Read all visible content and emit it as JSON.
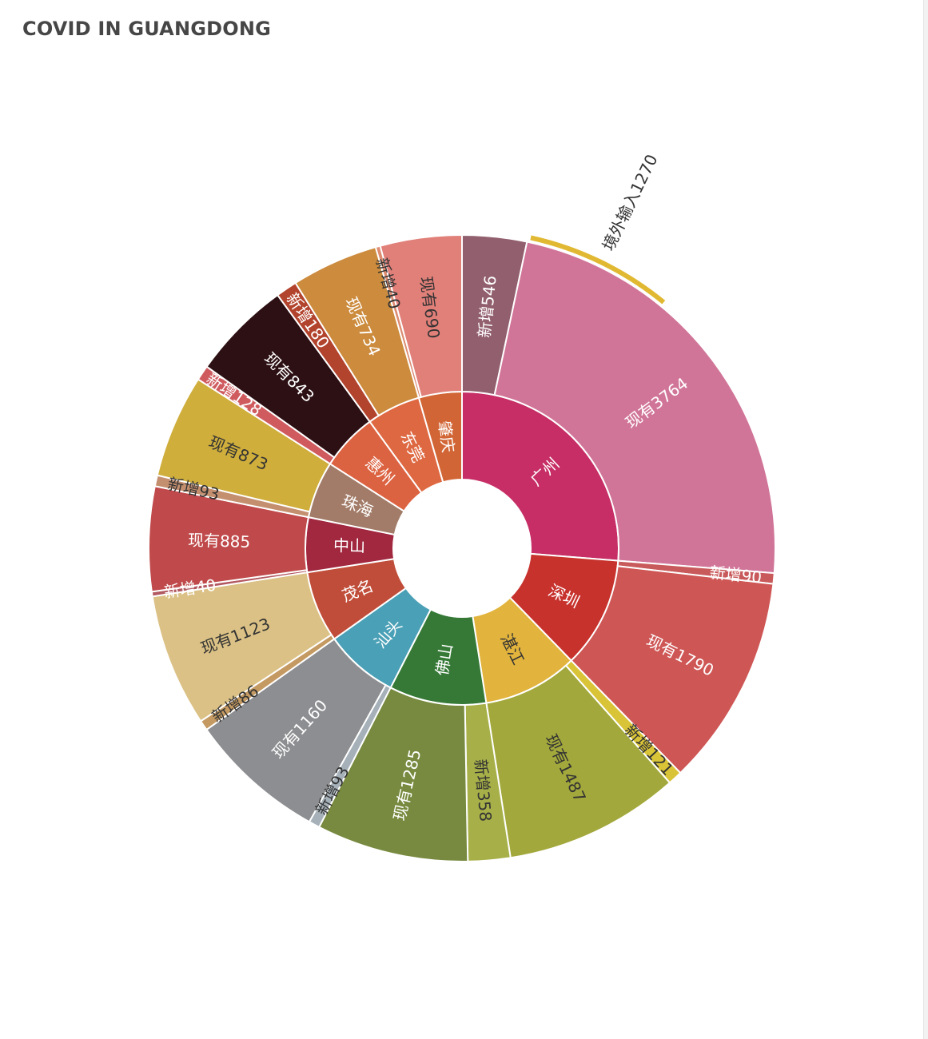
{
  "chart_data": {
    "type": "sunburst",
    "title": "COVID IN GUANGDONG",
    "root": {
      "color": "#c62e65",
      "children": [
        {
          "name": "广州",
          "color": "#c62e65",
          "children": [
            {
              "name": "新增546",
              "value": 546,
              "color": "#925f6e"
            },
            {
              "name": "现有3764",
              "value": 3764,
              "color": "#d17598"
            },
            {
              "name": "境外输入1270",
              "value": 1270,
              "color": "#e1b832",
              "outer": true
            }
          ]
        },
        {
          "name": "深圳",
          "color": "#c7322d",
          "children": [
            {
              "name": "新增90",
              "value": 90,
              "color": "#c95a5b"
            },
            {
              "name": "现有1790",
              "value": 1790,
              "color": "#ce5655"
            }
          ]
        },
        {
          "name": "湛江",
          "color": "#e2b43d",
          "children": [
            {
              "name": "新增121",
              "value": 121,
              "color": "#d9c438"
            },
            {
              "name": "现有1487",
              "value": 1487,
              "color": "#a2a83b"
            }
          ]
        },
        {
          "name": "佛山",
          "color": "#367937",
          "children": [
            {
              "name": "新增358",
              "value": 358,
              "color": "#a7b048"
            },
            {
              "name": "现有1285",
              "value": 1285,
              "color": "#778a3f"
            }
          ]
        },
        {
          "name": "汕头",
          "color": "#4aa0b6",
          "children": [
            {
              "name": "新增93",
              "value": 93,
              "color": "#a5b0b8"
            },
            {
              "name": "现有1160",
              "value": 1160,
              "color": "#8d8e91"
            }
          ]
        },
        {
          "name": "茂名",
          "color": "#c04d39",
          "children": [
            {
              "name": "新增86",
              "value": 86,
              "color": "#c49a62"
            },
            {
              "name": "现有1123",
              "value": 1123,
              "color": "#dbc185"
            }
          ]
        },
        {
          "name": "中山",
          "color": "#a1283f",
          "children": [
            {
              "name": "新增40",
              "value": 40,
              "color": "#b25860"
            },
            {
              "name": "现有885",
              "value": 885,
              "color": "#c04a4b"
            }
          ]
        },
        {
          "name": "珠海",
          "color": "#a27c68",
          "children": [
            {
              "name": "新增93",
              "value": 93,
              "color": "#c48f6f"
            },
            {
              "name": "现有873",
              "value": 873,
              "color": "#cfae3c"
            }
          ]
        },
        {
          "name": "惠州",
          "color": "#dc6342",
          "children": [
            {
              "name": "新增128",
              "value": 128,
              "color": "#cf5b5f"
            },
            {
              "name": "现有843",
              "value": 843,
              "color": "#2d1014"
            }
          ]
        },
        {
          "name": "东莞",
          "color": "#de6841",
          "children": [
            {
              "name": "新增180",
              "value": 180,
              "color": "#b2432d"
            },
            {
              "name": "现有734",
              "value": 734,
              "color": "#cc8b3d"
            }
          ]
        },
        {
          "name": "肇庆",
          "color": "#d26535",
          "children": [
            {
              "name": "新增40",
              "value": 40,
              "color": "#dd8c72"
            },
            {
              "name": "现有690",
              "value": 690,
              "color": "#e17f79"
            }
          ]
        }
      ]
    },
    "label_colors": {
      "light": "#ffffff",
      "dark": "#333333"
    }
  }
}
